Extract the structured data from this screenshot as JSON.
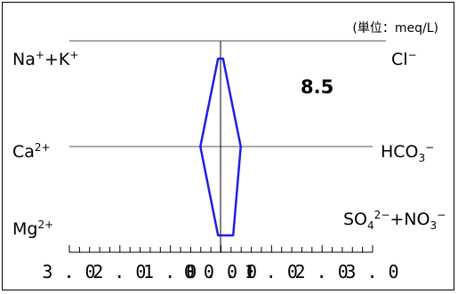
{
  "chart_data": {
    "type": "line",
    "subtype": "stiff-diagram",
    "unit_label": "(単位：meq/L)",
    "value_label": "8.5",
    "value_label_color": "#ff0000",
    "polygon_color": "#1f1fe6",
    "left_labels": [
      {
        "base": "Na",
        "sup": "+",
        "tail": "+K",
        "sup2": "+",
        "sub": "",
        "sup3": "",
        "tail2": "",
        "sub2": "",
        "sup4": ""
      },
      {
        "base": "Ca",
        "sup": "2+",
        "tail": "",
        "sup2": "",
        "sub": "",
        "sup3": "",
        "tail2": "",
        "sub2": "",
        "sup4": ""
      },
      {
        "base": "Mg",
        "sup": "2+",
        "tail": "",
        "sup2": "",
        "sub": "",
        "sup3": "",
        "tail2": "",
        "sub2": "",
        "sup4": ""
      }
    ],
    "right_labels": [
      {
        "base": "Cl",
        "sup": "−",
        "tail": "",
        "sup2": "",
        "sub": "",
        "sup3": "",
        "tail2": "",
        "sub2": "",
        "sup4": ""
      },
      {
        "base": "HCO",
        "sup": "",
        "tail": "",
        "sup2": "",
        "sub": "3",
        "sup3": "−",
        "tail2": "",
        "sub2": "",
        "sup4": ""
      },
      {
        "base": "SO",
        "sup": "",
        "tail": "",
        "sup2": "",
        "sub": "4",
        "sup3": "2−",
        "tail2": "+NO",
        "sub2": "3",
        "sup4": "−"
      }
    ],
    "tick_labels": [
      "3.0",
      "2.0",
      "1.0",
      "0.0",
      "0.0",
      "1.0",
      "2.0",
      "3.0"
    ],
    "x_range": [
      -3.0,
      3.0
    ],
    "minor_ticks_per_unit": 5,
    "left_values": [
      0.05,
      0.4,
      0.05
    ],
    "right_values": [
      0.05,
      0.4,
      0.25
    ]
  }
}
